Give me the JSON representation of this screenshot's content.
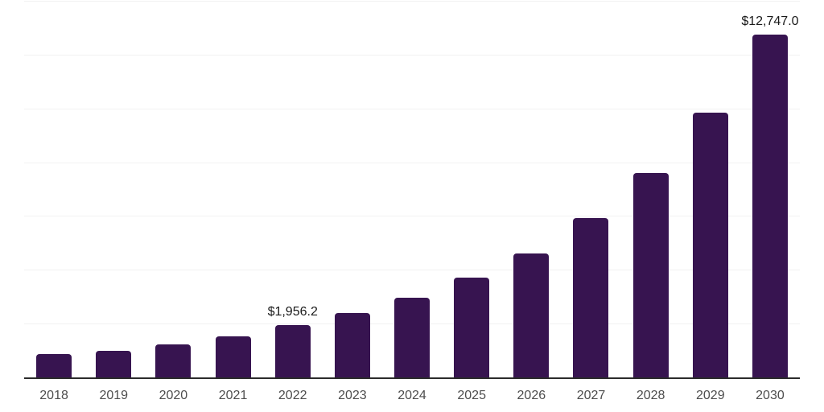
{
  "chart_data": {
    "type": "bar",
    "title": "",
    "xlabel": "",
    "ylabel": "",
    "categories": [
      "2018",
      "2019",
      "2020",
      "2021",
      "2022",
      "2023",
      "2024",
      "2025",
      "2026",
      "2027",
      "2028",
      "2029",
      "2030"
    ],
    "values": [
      880,
      1000,
      1220,
      1540,
      1956.2,
      2400,
      2950,
      3700,
      4620,
      5930,
      7600,
      9830,
      12747
    ],
    "data_labels": {
      "2022": "$1,956.2",
      "2030": "$12,747.0"
    },
    "ylim": [
      0,
      14000
    ],
    "gridline_interval": 2000,
    "grid": "horizontal",
    "legend_position": "none",
    "colors": {
      "bar": "#371450",
      "axis_line": "#2b2b2b",
      "gridline": "#f2f2f2",
      "data_label": "#1a1a1a",
      "tick_label": "#4d4d4d",
      "background": "#ffffff"
    }
  }
}
